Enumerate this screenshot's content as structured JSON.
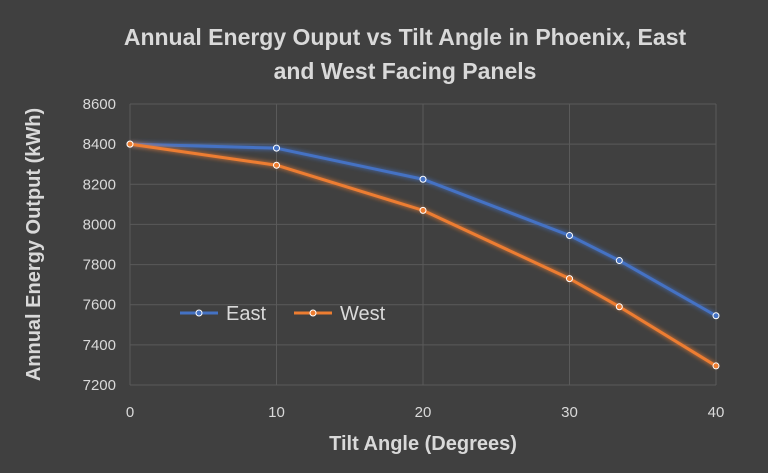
{
  "chart_data": {
    "type": "line",
    "title_line1": "Annual Energy Ouput vs Tilt Angle in Phoenix, East",
    "title_line2": "and West Facing Panels",
    "xlabel": "Tilt Angle (Degrees)",
    "ylabel": "Annual Energy Output (kWh)",
    "xlim": [
      0,
      40
    ],
    "ylim": [
      7200,
      8600
    ],
    "xticks": [
      0,
      10,
      20,
      30,
      40
    ],
    "yticks": [
      7200,
      7400,
      7600,
      7800,
      8000,
      8200,
      8400,
      8600
    ],
    "grid": true,
    "legend_position": "bottom-left",
    "series": [
      {
        "name": "East",
        "color": "#4472c4",
        "x": [
          0,
          10,
          20,
          30,
          33.4,
          40
        ],
        "y": [
          8400,
          8380,
          8225,
          7945,
          7820,
          7545
        ]
      },
      {
        "name": "West",
        "color": "#ed7d31",
        "x": [
          0,
          10,
          20,
          30,
          33.4,
          40
        ],
        "y": [
          8400,
          8295,
          8070,
          7730,
          7590,
          7295
        ]
      }
    ]
  }
}
